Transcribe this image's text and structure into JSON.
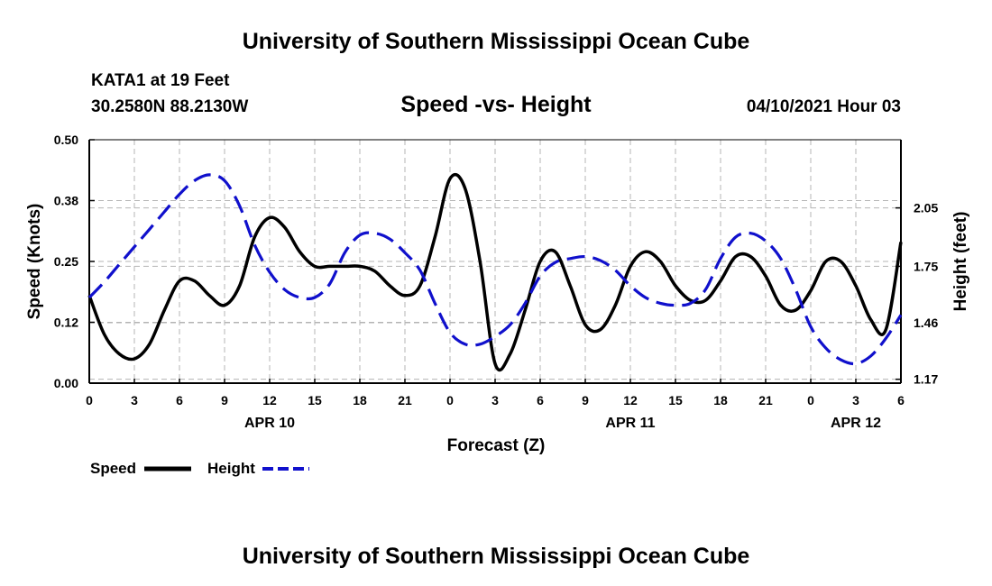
{
  "header": {
    "title_top": "University of Southern Mississippi Ocean Cube",
    "station": "KATA1 at 19 Feet",
    "coords": "30.2580N  88.2130W",
    "chart_title": "Speed -vs- Height",
    "timestamp": "04/10/2021 Hour 03",
    "title_bottom": "University of Southern Mississippi Ocean Cube"
  },
  "legend": {
    "speed_label": "Speed",
    "height_label": "Height"
  },
  "colors": {
    "speed": "#000000",
    "height": "#1010cc",
    "grid": "#b4b4b4"
  },
  "chart_data": {
    "type": "line",
    "title": "Speed -vs- Height",
    "xlabel": "Forecast (Z)",
    "ylabel": "Speed (Knots)",
    "y2label": "Height (feet)",
    "x_range": [
      0,
      54
    ],
    "x_ticks": [
      0,
      3,
      6,
      9,
      12,
      15,
      18,
      21,
      24,
      27,
      30,
      33,
      36,
      39,
      42,
      45,
      48,
      51,
      54
    ],
    "x_tick_labels": [
      "0",
      "3",
      "6",
      "9",
      "12",
      "15",
      "18",
      "21",
      "0",
      "3",
      "6",
      "9",
      "12",
      "15",
      "18",
      "21",
      "0",
      "3",
      "6"
    ],
    "date_labels": [
      {
        "label": "APR 10",
        "x": 12
      },
      {
        "label": "APR 11",
        "x": 36
      },
      {
        "label": "APR 12",
        "x": 51
      }
    ],
    "y_left": {
      "range": [
        0,
        0.5
      ],
      "ticks": [
        0,
        0.125,
        0.25,
        0.375,
        0.5
      ],
      "tick_labels": [
        "0.00",
        "0.12",
        "0.25",
        "0.38",
        "0.50"
      ]
    },
    "y_right": {
      "range": [
        1.15,
        2.4
      ],
      "ticks": [
        1.17,
        1.46,
        1.75,
        2.05
      ],
      "tick_labels": [
        "1.17",
        "1.46",
        "1.75",
        "2.05"
      ]
    },
    "grid": true,
    "legend_position": "bottom-left",
    "series": [
      {
        "name": "Speed",
        "axis": "left",
        "style": "solid",
        "x": [
          0,
          1,
          2,
          3,
          4,
          5,
          6,
          7,
          8,
          9,
          10,
          11,
          12,
          13,
          14,
          15,
          16,
          17,
          18,
          19,
          20,
          21,
          22,
          23,
          24,
          25,
          26,
          27,
          28,
          29,
          30,
          31,
          32,
          33,
          34,
          35,
          36,
          37,
          38,
          39,
          40,
          41,
          42,
          43,
          44,
          45,
          46,
          47,
          48,
          49,
          50,
          51,
          52,
          53,
          54
        ],
        "values": [
          0.18,
          0.1,
          0.06,
          0.05,
          0.08,
          0.15,
          0.21,
          0.21,
          0.18,
          0.16,
          0.2,
          0.3,
          0.34,
          0.32,
          0.27,
          0.24,
          0.24,
          0.24,
          0.24,
          0.23,
          0.2,
          0.18,
          0.2,
          0.3,
          0.42,
          0.4,
          0.25,
          0.04,
          0.06,
          0.15,
          0.25,
          0.27,
          0.2,
          0.12,
          0.11,
          0.16,
          0.24,
          0.27,
          0.25,
          0.2,
          0.17,
          0.17,
          0.21,
          0.26,
          0.26,
          0.22,
          0.16,
          0.15,
          0.19,
          0.25,
          0.25,
          0.2,
          0.13,
          0.11,
          0.29
        ]
      },
      {
        "name": "Height",
        "axis": "right",
        "style": "dashed",
        "x": [
          0,
          1,
          2,
          3,
          4,
          5,
          6,
          7,
          8,
          9,
          10,
          11,
          12,
          13,
          14,
          15,
          16,
          17,
          18,
          19,
          20,
          21,
          22,
          23,
          24,
          25,
          26,
          27,
          28,
          29,
          30,
          31,
          32,
          33,
          34,
          35,
          36,
          37,
          38,
          39,
          40,
          41,
          42,
          43,
          44,
          45,
          46,
          47,
          48,
          49,
          50,
          51,
          52,
          53,
          54
        ],
        "values": [
          1.59,
          1.67,
          1.76,
          1.85,
          1.94,
          2.03,
          2.12,
          2.19,
          2.22,
          2.19,
          2.06,
          1.86,
          1.72,
          1.63,
          1.59,
          1.59,
          1.66,
          1.82,
          1.91,
          1.92,
          1.89,
          1.82,
          1.73,
          1.56,
          1.41,
          1.35,
          1.35,
          1.39,
          1.45,
          1.56,
          1.7,
          1.77,
          1.79,
          1.8,
          1.78,
          1.73,
          1.65,
          1.59,
          1.56,
          1.55,
          1.56,
          1.63,
          1.79,
          1.9,
          1.92,
          1.88,
          1.79,
          1.63,
          1.44,
          1.33,
          1.27,
          1.25,
          1.29,
          1.38,
          1.5
        ]
      }
    ]
  }
}
